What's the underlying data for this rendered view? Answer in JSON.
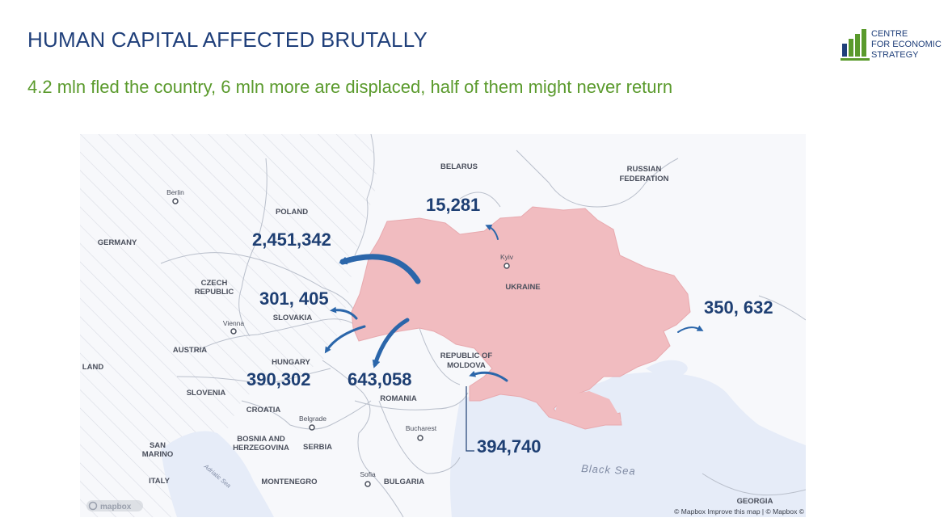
{
  "header": {
    "title": "HUMAN CAPITAL AFFECTED BRUTALLY",
    "subtitle": "4.2 mln fled the country,  6 mln more are displaced, half of them might never return"
  },
  "logo": {
    "line1": "CENTRE",
    "line2": "FOR ECONOMIC",
    "line3": "STRATEGY"
  },
  "map": {
    "countries": {
      "belarus": "BELARUS",
      "russia_1": "RUSSIAN",
      "russia_2": "FEDERATION",
      "poland": "POLAND",
      "germany": "GERMANY",
      "czech_1": "CZECH",
      "czech_2": "REPUBLIC",
      "slovakia": "SLOVAKIA",
      "austria": "AUSTRIA",
      "hungary": "HUNGARY",
      "ukraine": "UKRAINE",
      "moldova_1": "REPUBLIC OF",
      "moldova_2": "MOLDOVA",
      "romania": "ROMANIA",
      "slovenia": "SLOVENIA",
      "croatia": "CROATIA",
      "bosnia_1": "BOSNIA AND",
      "bosnia_2": "HERZEGOVINA",
      "serbia": "SERBIA",
      "san_marino_1": "SAN",
      "san_marino_2": "MARINO",
      "italy": "ITALY",
      "montenegro": "MONTENEGRO",
      "bulgaria": "BULGARIA",
      "georgia": "GEORGIA",
      "finland_partial": "LAND"
    },
    "cities": {
      "berlin": "Berlin",
      "kyiv": "Kyiv",
      "vienna": "Vienna",
      "belgrade": "Belgrade",
      "bucharest": "Bucharest",
      "sofia": "Sofia"
    },
    "seas": {
      "black_sea": "Black Sea",
      "adriatic_sea": "Adriatic Sea"
    },
    "refugee_counts": {
      "belarus": "15,281",
      "poland": "2,451,342",
      "slovakia": "301, 405",
      "russia": "350, 632",
      "hungary": "390,302",
      "romania": "643,058",
      "moldova": "394,740"
    },
    "attribution": "© Mapbox  Improve this map | © Mapbox ©",
    "mapbox_logo": "mapbox"
  },
  "colors": {
    "ukraine_fill": "#f1bcc0",
    "arrow": "#2b66aa",
    "number": "#1e3f73",
    "sea": "#e6ecf8"
  }
}
